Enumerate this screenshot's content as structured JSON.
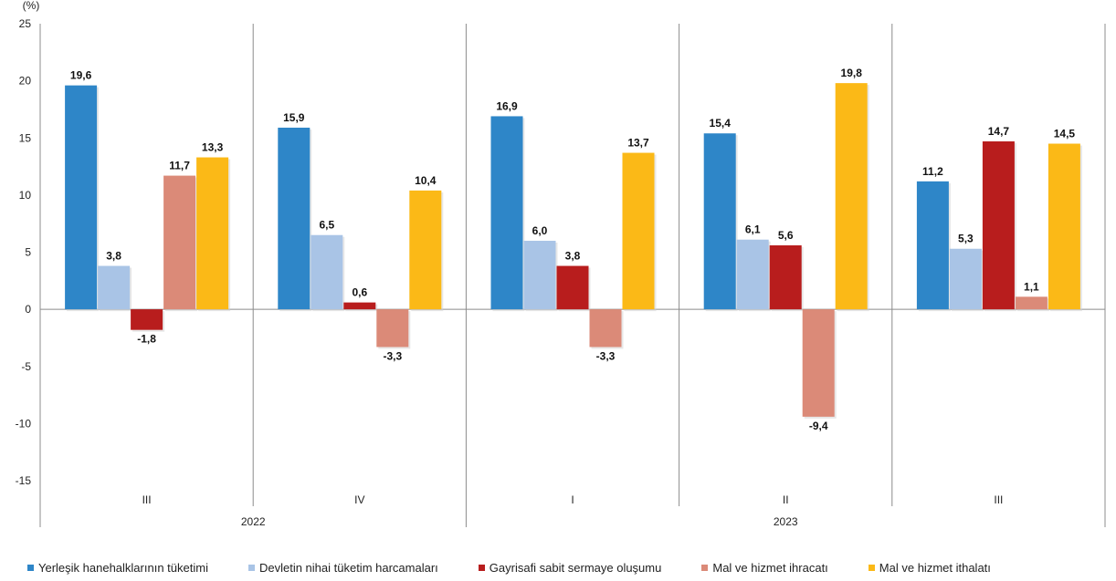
{
  "chart_data": {
    "type": "bar",
    "ylabel": "(%)",
    "ylim": [
      -15,
      25
    ],
    "yticks": [
      25,
      20,
      15,
      10,
      5,
      0,
      -5,
      -10,
      -15
    ],
    "grid": false,
    "legend_position": "bottom",
    "categories": [
      "III",
      "IV",
      "I",
      "II",
      "III"
    ],
    "year_groups": [
      {
        "label": "2022",
        "span": [
          0,
          1
        ]
      },
      {
        "label": "2023",
        "span": [
          2,
          4
        ]
      }
    ],
    "series": [
      {
        "name": "Yerleşik hanehalklarının tüketimi",
        "color": "#2e86c8",
        "values": [
          19.6,
          15.9,
          16.9,
          15.4,
          11.2
        ],
        "labels": [
          "19,6",
          "15,9",
          "16,9",
          "15,4",
          "11,2"
        ]
      },
      {
        "name": "Devletin nihai tüketim harcamaları",
        "color": "#a9c4e6",
        "values": [
          3.8,
          6.5,
          6.0,
          6.1,
          5.3
        ],
        "labels": [
          "3,8",
          "6,5",
          "6,0",
          "6,1",
          "5,3"
        ]
      },
      {
        "name": "Gayrisafi sabit sermaye oluşumu",
        "color": "#b81d1d",
        "values": [
          -1.8,
          0.6,
          3.8,
          5.6,
          14.7
        ],
        "labels": [
          "-1,8",
          "0,6",
          "3,8",
          "5,6",
          "14,7"
        ]
      },
      {
        "name": "Mal ve hizmet ihracatı",
        "color": "#db8a78",
        "values": [
          11.7,
          -3.3,
          -3.3,
          -9.4,
          1.1
        ],
        "labels": [
          "11,7",
          "-3,3",
          "-3,3",
          "-9,4",
          "1,1"
        ]
      },
      {
        "name": "Mal ve hizmet ithalatı",
        "color": "#fbb917",
        "values": [
          13.3,
          10.4,
          13.7,
          19.8,
          14.5
        ],
        "labels": [
          "13,3",
          "10,4",
          "13,7",
          "19,8",
          "14,5"
        ]
      }
    ]
  }
}
